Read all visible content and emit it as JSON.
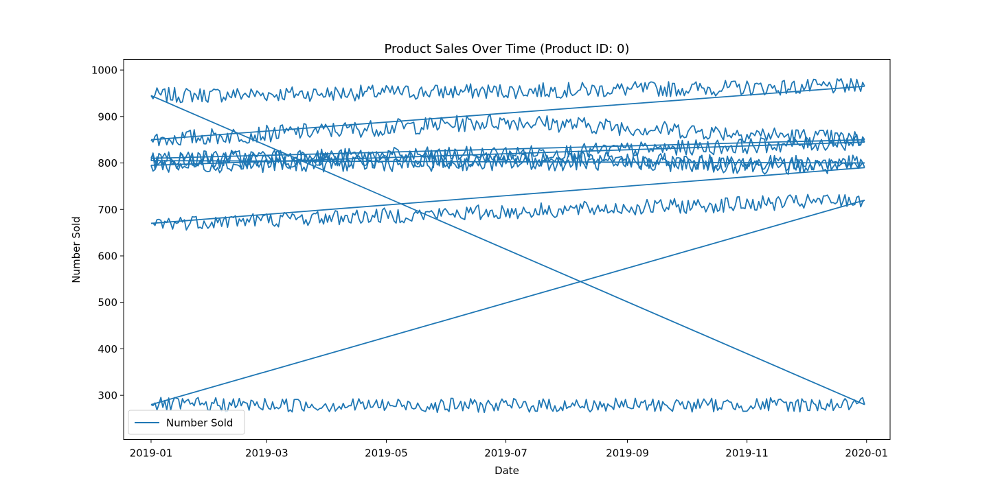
{
  "chart_data": {
    "type": "line",
    "title": "Product Sales Over Time (Product ID: 0)",
    "xlabel": "Date",
    "ylabel": "Number Sold",
    "x_range": [
      "2018-12-18",
      "2020-01-13"
    ],
    "ylim": [
      205,
      1023
    ],
    "x_ticks": [
      "2019-01",
      "2019-03",
      "2019-05",
      "2019-07",
      "2019-09",
      "2019-11",
      "2020-01"
    ],
    "y_ticks": [
      300,
      400,
      500,
      600,
      700,
      800,
      900,
      1000
    ],
    "grid": false,
    "legend": {
      "position": "lower-left",
      "entries": [
        "Number Sold"
      ]
    },
    "line_color": "#1f77b4",
    "series": [
      {
        "name": "Number Sold",
        "note_visual": "one continuous line that replays daily values for 2019-01-01..2019-12-31 several times, with straight connectors between the end of one pass and the start of the next",
        "segments": [
          {
            "start": "2019-01-01",
            "end": "2019-12-31",
            "start_value": 945,
            "end_value": 965,
            "noise": 12
          },
          {
            "start": "2019-01-01",
            "end": "2019-12-31",
            "start_value": 850,
            "mid_value": 890,
            "end_value": 850,
            "noise": 13
          },
          {
            "start": "2019-01-01",
            "end": "2019-12-31",
            "start_value": 810,
            "mid_value": 820,
            "end_value": 845,
            "noise": 12
          },
          {
            "start": "2019-01-01",
            "end": "2019-12-31",
            "start_value": 795,
            "mid_value": 800,
            "end_value": 800,
            "noise": 12
          },
          {
            "start": "2019-01-01",
            "end": "2019-12-31",
            "start_value": 805,
            "mid_value": 810,
            "end_value": 790,
            "noise": 14
          },
          {
            "start": "2019-01-01",
            "end": "2019-12-31",
            "start_value": 670,
            "end_value": 720,
            "noise": 12
          },
          {
            "start": "2019-01-01",
            "end": "2019-12-31",
            "start_value": 280,
            "mid_value": 278,
            "end_value": 280,
            "noise": 11
          }
        ],
        "connectors": [
          {
            "from": [
              "2019-12-31",
              965
            ],
            "to": [
              "2019-01-01",
              850
            ]
          },
          {
            "from": [
              "2019-12-31",
              850
            ],
            "to": [
              "2019-01-01",
              810
            ]
          },
          {
            "from": [
              "2019-12-31",
              845
            ],
            "to": [
              "2019-01-01",
              795
            ]
          },
          {
            "from": [
              "2019-12-31",
              800
            ],
            "to": [
              "2019-01-01",
              805
            ]
          },
          {
            "from": [
              "2019-12-31",
              790
            ],
            "to": [
              "2019-01-01",
              670
            ]
          },
          {
            "from": [
              "2019-12-31",
              720
            ],
            "to": [
              "2019-01-01",
              280
            ]
          },
          {
            "from": [
              "2019-12-31",
              280
            ],
            "to": [
              "2019-01-01",
              945
            ]
          }
        ]
      }
    ]
  }
}
